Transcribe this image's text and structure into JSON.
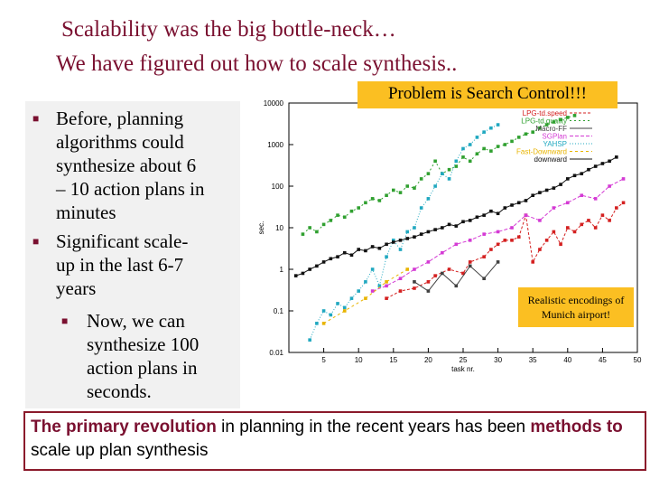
{
  "slide": {
    "title_line1": "Scalability was the big bottle-neck…",
    "title_line2": "We have figured out how to scale synthesis..",
    "callout_search": "Problem is Search Control!!!",
    "callout_munich": "Realistic encodings of Munich airport!",
    "bullets": {
      "b1": [
        "Before, planning",
        "algorithms could",
        "synthesize about 6",
        "– 10 action plans in",
        "minutes"
      ],
      "b2": [
        "Significant scale-",
        "up in the last 6-7",
        "years"
      ],
      "b3": [
        "Now, we can",
        "synthesize 100",
        "action plans in",
        "seconds."
      ]
    },
    "summary": {
      "part1": "The primary revolution",
      "part2": " in planning in the recent years has been ",
      "part3": "methods to",
      "part4": " scale up plan synthesis"
    },
    "colors": {
      "title": "#7a1030",
      "callout": "#fbbf22",
      "panel": "#f1f1f1",
      "border": "#8b1a2b"
    }
  },
  "chart_data": {
    "type": "line",
    "xlabel": "task nr.",
    "ylabel": "sec.",
    "y_scale": "log",
    "ylim": [
      0.01,
      10000
    ],
    "xlim": [
      0,
      50
    ],
    "x_ticks": [
      "5",
      "10",
      "15",
      "20",
      "25",
      "30",
      "35",
      "40",
      "45",
      "50"
    ],
    "y_ticks": [
      "0.01",
      "0.1",
      "1",
      "10",
      "100",
      "1000",
      "10000"
    ],
    "legend_position": "top-right",
    "series": [
      {
        "name": "LPG-td.speed",
        "color": "#d42020",
        "dash": "3,2",
        "points": [
          [
            14,
            0.2
          ],
          [
            16,
            0.3
          ],
          [
            18,
            0.35
          ],
          [
            20,
            0.5
          ],
          [
            21,
            0.7
          ],
          [
            23,
            1.0
          ],
          [
            25,
            0.8
          ],
          [
            26,
            1.5
          ],
          [
            28,
            2
          ],
          [
            29,
            3
          ],
          [
            30,
            4
          ],
          [
            31,
            5
          ],
          [
            32,
            5
          ],
          [
            33,
            6
          ],
          [
            34,
            20
          ],
          [
            35,
            1.5
          ],
          [
            36,
            3
          ],
          [
            37,
            5
          ],
          [
            38,
            8
          ],
          [
            39,
            4
          ],
          [
            40,
            10
          ],
          [
            41,
            8
          ],
          [
            42,
            12
          ],
          [
            43,
            15
          ],
          [
            44,
            10
          ],
          [
            45,
            20
          ],
          [
            46,
            15
          ],
          [
            47,
            30
          ],
          [
            48,
            40
          ]
        ]
      },
      {
        "name": "LPG-td.quality",
        "color": "#30a030",
        "dash": "2,3",
        "points": [
          [
            2,
            7
          ],
          [
            3,
            10
          ],
          [
            4,
            8
          ],
          [
            5,
            12
          ],
          [
            6,
            15
          ],
          [
            7,
            20
          ],
          [
            8,
            18
          ],
          [
            9,
            25
          ],
          [
            10,
            30
          ],
          [
            11,
            40
          ],
          [
            12,
            50
          ],
          [
            13,
            45
          ],
          [
            14,
            60
          ],
          [
            15,
            80
          ],
          [
            16,
            70
          ],
          [
            17,
            100
          ],
          [
            18,
            90
          ],
          [
            19,
            150
          ],
          [
            20,
            200
          ],
          [
            21,
            400
          ],
          [
            22,
            200
          ],
          [
            23,
            250
          ],
          [
            24,
            300
          ],
          [
            25,
            500
          ],
          [
            26,
            400
          ],
          [
            27,
            600
          ],
          [
            28,
            800
          ],
          [
            29,
            700
          ],
          [
            30,
            900
          ],
          [
            31,
            1000
          ],
          [
            32,
            1200
          ],
          [
            33,
            1500
          ],
          [
            34,
            1800
          ],
          [
            35,
            2000
          ],
          [
            36,
            2500
          ],
          [
            37,
            3000
          ],
          [
            38,
            3500
          ],
          [
            39,
            4000
          ],
          [
            40,
            4500
          ],
          [
            41,
            5000
          ]
        ]
      },
      {
        "name": "Macro-FF",
        "color": "#404040",
        "dash": "",
        "points": [
          [
            18,
            0.5
          ],
          [
            20,
            0.3
          ],
          [
            22,
            0.8
          ],
          [
            24,
            0.4
          ],
          [
            26,
            1.2
          ],
          [
            28,
            0.6
          ],
          [
            30,
            1.5
          ]
        ]
      },
      {
        "name": "SGPlan",
        "color": "#d43ad4",
        "dash": "4,2",
        "points": [
          [
            12,
            0.3
          ],
          [
            14,
            0.4
          ],
          [
            16,
            0.6
          ],
          [
            18,
            1
          ],
          [
            20,
            1.5
          ],
          [
            22,
            2.5
          ],
          [
            24,
            4
          ],
          [
            26,
            5
          ],
          [
            28,
            7
          ],
          [
            30,
            8
          ],
          [
            32,
            10
          ],
          [
            34,
            20
          ],
          [
            36,
            15
          ],
          [
            38,
            30
          ],
          [
            40,
            40
          ],
          [
            42,
            60
          ],
          [
            44,
            50
          ],
          [
            46,
            100
          ],
          [
            48,
            150
          ]
        ]
      },
      {
        "name": "YAHSP",
        "color": "#20a8c0",
        "dash": "1,2",
        "points": [
          [
            3,
            0.02
          ],
          [
            4,
            0.05
          ],
          [
            5,
            0.1
          ],
          [
            6,
            0.08
          ],
          [
            7,
            0.15
          ],
          [
            8,
            0.12
          ],
          [
            9,
            0.2
          ],
          [
            10,
            0.3
          ],
          [
            11,
            0.5
          ],
          [
            12,
            1
          ],
          [
            13,
            0.4
          ],
          [
            14,
            2
          ],
          [
            15,
            5
          ],
          [
            16,
            3
          ],
          [
            17,
            8
          ],
          [
            18,
            10
          ],
          [
            19,
            30
          ],
          [
            20,
            50
          ],
          [
            21,
            100
          ],
          [
            22,
            200
          ],
          [
            23,
            150
          ],
          [
            24,
            400
          ],
          [
            25,
            800
          ],
          [
            26,
            1000
          ],
          [
            27,
            1500
          ],
          [
            28,
            2000
          ],
          [
            29,
            2500
          ],
          [
            30,
            3000
          ]
        ]
      },
      {
        "name": "Fast-Downward",
        "color": "#e8b400",
        "dash": "3,3",
        "points": [
          [
            5,
            0.05
          ],
          [
            8,
            0.1
          ],
          [
            11,
            0.2
          ],
          [
            14,
            0.5
          ],
          [
            17,
            1
          ]
        ]
      },
      {
        "name": "downward",
        "color": "#111111",
        "dash": "",
        "points": [
          [
            1,
            0.7
          ],
          [
            2,
            0.8
          ],
          [
            3,
            1
          ],
          [
            4,
            1.2
          ],
          [
            5,
            1.5
          ],
          [
            6,
            1.8
          ],
          [
            7,
            2
          ],
          [
            8,
            2.5
          ],
          [
            9,
            2.2
          ],
          [
            10,
            3
          ],
          [
            11,
            2.8
          ],
          [
            12,
            3.5
          ],
          [
            13,
            3.2
          ],
          [
            14,
            4
          ],
          [
            15,
            4.5
          ],
          [
            16,
            5
          ],
          [
            17,
            5.5
          ],
          [
            18,
            6
          ],
          [
            19,
            7
          ],
          [
            20,
            8
          ],
          [
            21,
            9
          ],
          [
            22,
            10
          ],
          [
            23,
            12
          ],
          [
            24,
            11
          ],
          [
            25,
            14
          ],
          [
            26,
            15
          ],
          [
            27,
            18
          ],
          [
            28,
            20
          ],
          [
            29,
            25
          ],
          [
            30,
            22
          ],
          [
            31,
            30
          ],
          [
            32,
            35
          ],
          [
            33,
            40
          ],
          [
            34,
            45
          ],
          [
            35,
            60
          ],
          [
            36,
            70
          ],
          [
            37,
            80
          ],
          [
            38,
            90
          ],
          [
            39,
            110
          ],
          [
            40,
            150
          ],
          [
            41,
            180
          ],
          [
            42,
            200
          ],
          [
            43,
            250
          ],
          [
            44,
            300
          ],
          [
            45,
            350
          ],
          [
            46,
            400
          ],
          [
            47,
            500
          ]
        ]
      }
    ]
  }
}
